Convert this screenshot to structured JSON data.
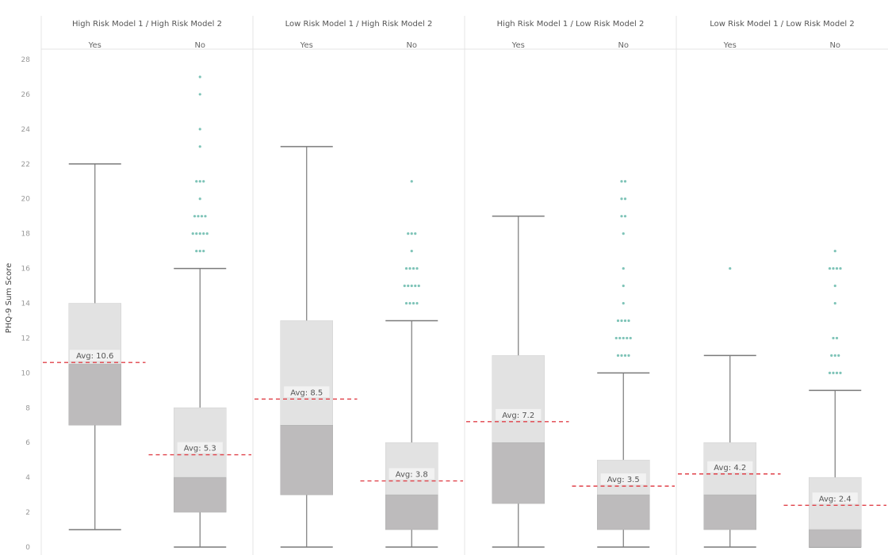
{
  "colors": {
    "upper_box": "#e2e2e2",
    "lower_box": "#bdbbbc",
    "whisker": "#7a7a7a",
    "outlier": "#7fc4b8",
    "average_line": "#e0424a",
    "divider": "#e4e4e4"
  },
  "chart_data": {
    "type": "box",
    "ylabel": "PHQ-9 Sum Score",
    "ylim": [
      0,
      28
    ],
    "yticks": [
      0,
      2,
      4,
      6,
      8,
      10,
      12,
      14,
      16,
      18,
      20,
      22,
      24,
      26,
      28
    ],
    "grid": false,
    "panels": [
      {
        "title": "High Risk Model 1 / High Risk Model 2",
        "groups": [
          {
            "category": "Yes",
            "min": 1,
            "q1": 7,
            "median": 10.5,
            "q3": 14,
            "max": 22,
            "average": 10.6,
            "average_label": "Avg: 10.6",
            "outliers": []
          },
          {
            "category": "No",
            "min": 0,
            "q1": 2,
            "median": 4,
            "q3": 8,
            "max": 16,
            "average": 5.3,
            "average_label": "Avg: 5.3",
            "outliers": [
              [
                17,
                3
              ],
              [
                18,
                5
              ],
              [
                19,
                4
              ],
              [
                20,
                1
              ],
              [
                21,
                3
              ],
              [
                23,
                1
              ],
              [
                24,
                1
              ],
              [
                26,
                1
              ],
              [
                27,
                1
              ]
            ]
          }
        ]
      },
      {
        "title": "Low Risk Model 1 / High Risk Model 2",
        "groups": [
          {
            "category": "Yes",
            "min": 0,
            "q1": 3,
            "median": 7,
            "q3": 13,
            "max": 23,
            "average": 8.5,
            "average_label": "Avg: 8.5",
            "outliers": []
          },
          {
            "category": "No",
            "min": 0,
            "q1": 1,
            "median": 3,
            "q3": 6,
            "max": 13,
            "average": 3.8,
            "average_label": "Avg: 3.8",
            "outliers": [
              [
                14,
                4
              ],
              [
                15,
                5
              ],
              [
                16,
                4
              ],
              [
                17,
                1
              ],
              [
                18,
                3
              ],
              [
                21,
                1
              ]
            ]
          }
        ]
      },
      {
        "title": "High Risk Model 1 / Low Risk Model 2",
        "groups": [
          {
            "category": "Yes",
            "min": 0,
            "q1": 2.5,
            "median": 6,
            "q3": 11,
            "max": 19,
            "average": 7.2,
            "average_label": "Avg: 7.2",
            "outliers": []
          },
          {
            "category": "No",
            "min": 0,
            "q1": 1,
            "median": 3,
            "q3": 5,
            "max": 10,
            "average": 3.5,
            "average_label": "Avg: 3.5",
            "outliers": [
              [
                11,
                4
              ],
              [
                12,
                5
              ],
              [
                13,
                4
              ],
              [
                14,
                1
              ],
              [
                15,
                1
              ],
              [
                16,
                1
              ],
              [
                18,
                1
              ],
              [
                19,
                2
              ],
              [
                20,
                2
              ],
              [
                21,
                2
              ]
            ]
          }
        ]
      },
      {
        "title": "Low Risk Model 1 / Low Risk Model 2",
        "groups": [
          {
            "category": "Yes",
            "min": 0,
            "q1": 1,
            "median": 3,
            "q3": 6,
            "max": 11,
            "average": 4.2,
            "average_label": "Avg: 4.2",
            "outliers": [
              [
                16,
                1
              ]
            ]
          },
          {
            "category": "No",
            "min": 0,
            "q1": 0,
            "median": 1,
            "q3": 4,
            "max": 9,
            "average": 2.4,
            "average_label": "Avg: 2.4",
            "outliers": [
              [
                10,
                4
              ],
              [
                11,
                3
              ],
              [
                12,
                2
              ],
              [
                14,
                1
              ],
              [
                15,
                1
              ],
              [
                16,
                4
              ],
              [
                17,
                1
              ]
            ]
          }
        ]
      }
    ]
  }
}
